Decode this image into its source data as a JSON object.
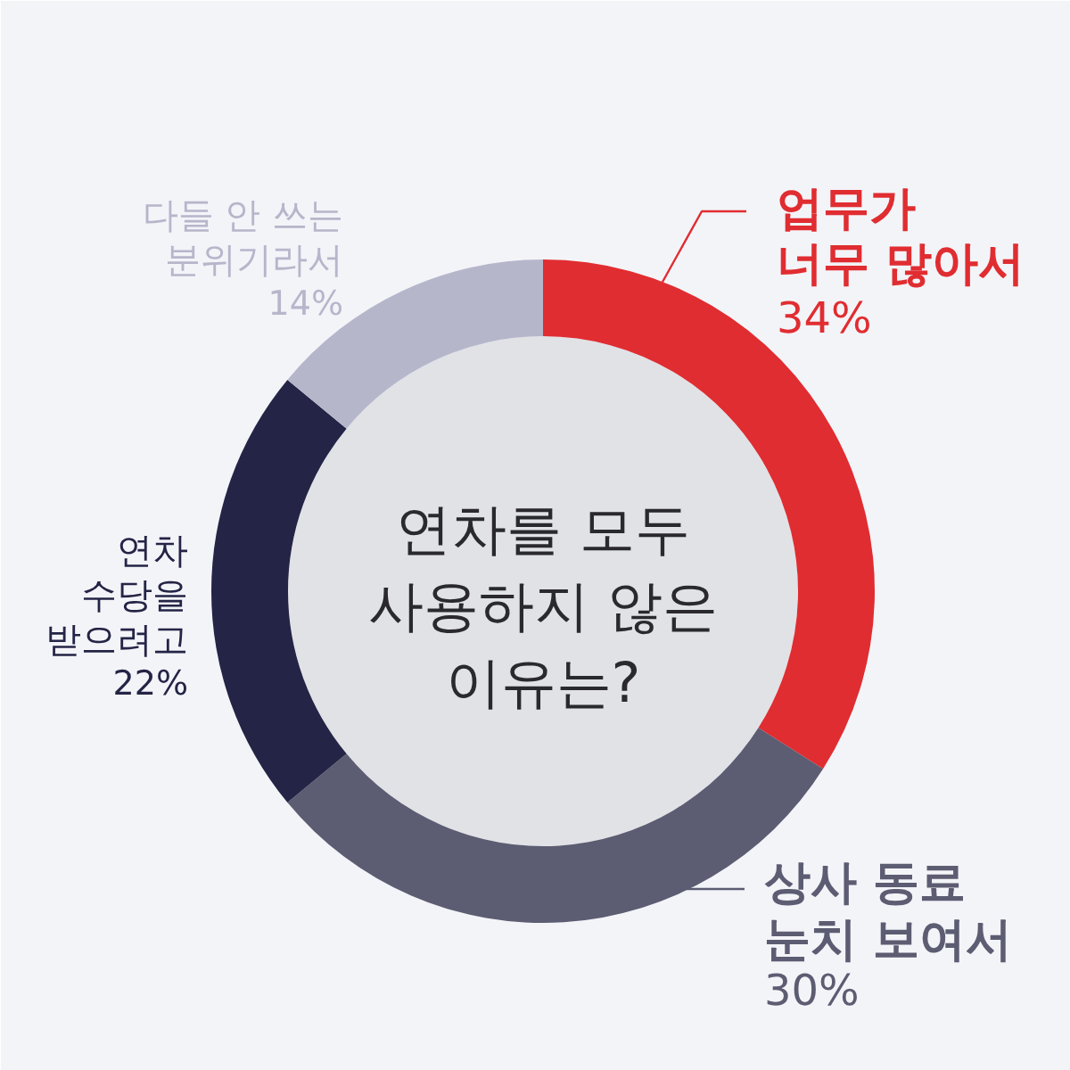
{
  "chart_data": {
    "type": "donut",
    "title": "연차를 모두\n사용하지 않은\n이유는?",
    "categories": [
      "업무가\n너무 많아서",
      "상사 동료\n눈치 보여서",
      "연차\n수당을\n받으려고",
      "다들 안 쓰는\n분위기라서"
    ],
    "values": [
      34,
      30,
      22,
      14
    ],
    "colors": [
      "#e02d31",
      "#5c5c72",
      "#242446",
      "#b6b6cb"
    ],
    "value_labels": [
      "34%",
      "30%",
      "22%",
      "14%"
    ]
  }
}
